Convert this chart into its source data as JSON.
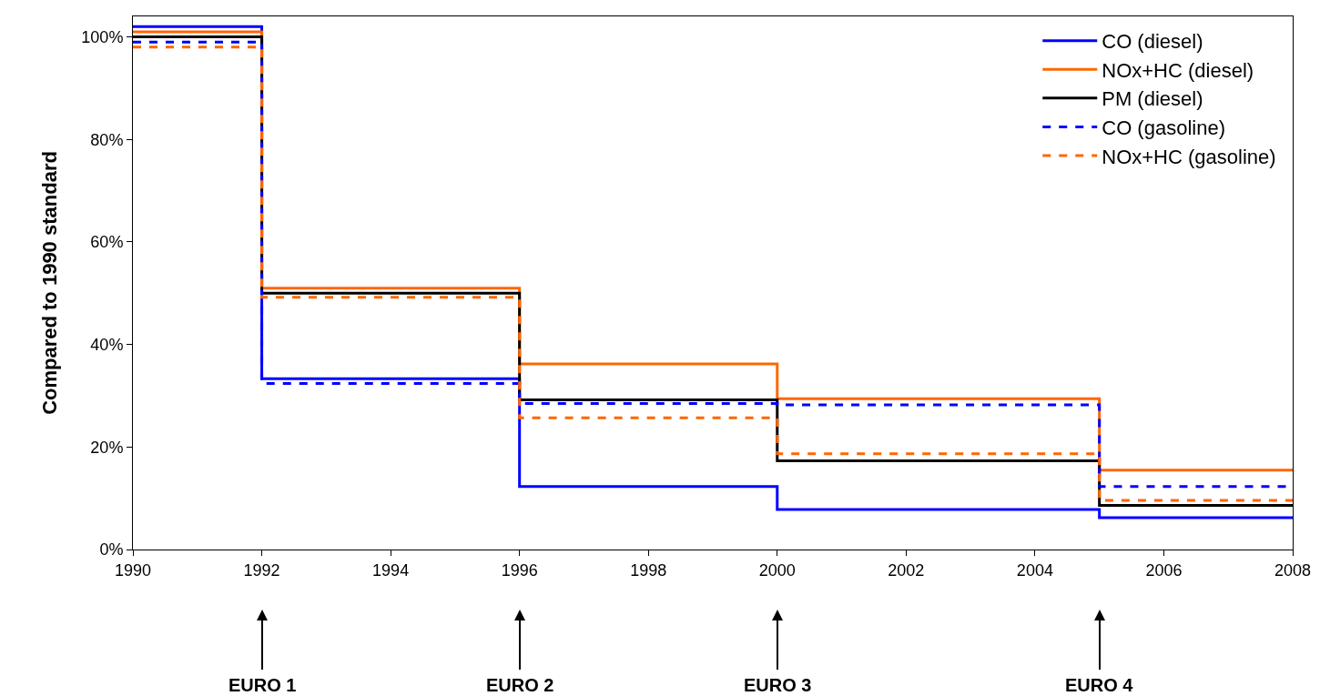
{
  "chart_data": {
    "type": "step",
    "ylabel": "Compared to 1990 standard",
    "x": [
      1990,
      1992,
      1996,
      2000,
      2005,
      2008
    ],
    "series": [
      {
        "name": "CO (diesel)",
        "color": "#0000ff",
        "line_style": "solid",
        "values": [
          102,
          33.3,
          12.3,
          7.8,
          6.2,
          6.2
        ]
      },
      {
        "name": "NOx+HC (diesel)",
        "color": "#ff6600",
        "line_style": "solid",
        "values": [
          101,
          51,
          36.2,
          29.4,
          15.5,
          15.5
        ]
      },
      {
        "name": "PM (diesel)",
        "color": "#000000",
        "line_style": "solid",
        "values": [
          100,
          50,
          29.2,
          17.3,
          8.6,
          8.6
        ]
      },
      {
        "name": "CO (gasoline)",
        "color": "#0000ff",
        "line_style": "dashed",
        "values": [
          99,
          32.4,
          28.5,
          28.2,
          12.3,
          12.3
        ]
      },
      {
        "name": "NOx+HC (gasoline)",
        "color": "#ff6600",
        "line_style": "dashed",
        "values": [
          98,
          49.2,
          25.7,
          18.7,
          9.6,
          9.6
        ]
      }
    ],
    "xlim": [
      1990,
      2008
    ],
    "xticks": [
      1990,
      1992,
      1994,
      1996,
      1998,
      2000,
      2002,
      2004,
      2006,
      2008
    ],
    "ylim": [
      0,
      104
    ],
    "yticks": [
      {
        "value": 0,
        "label": "0%"
      },
      {
        "value": 20,
        "label": "20%"
      },
      {
        "value": 40,
        "label": "40%"
      },
      {
        "value": 60,
        "label": "60%"
      },
      {
        "value": 80,
        "label": "80%"
      },
      {
        "value": 100,
        "label": "100%"
      }
    ],
    "grid": false,
    "legend": "top right",
    "marker": "none",
    "annotations": [
      "EURO 1",
      "EURO 2",
      "EURO 3",
      "EURO 4"
    ]
  }
}
